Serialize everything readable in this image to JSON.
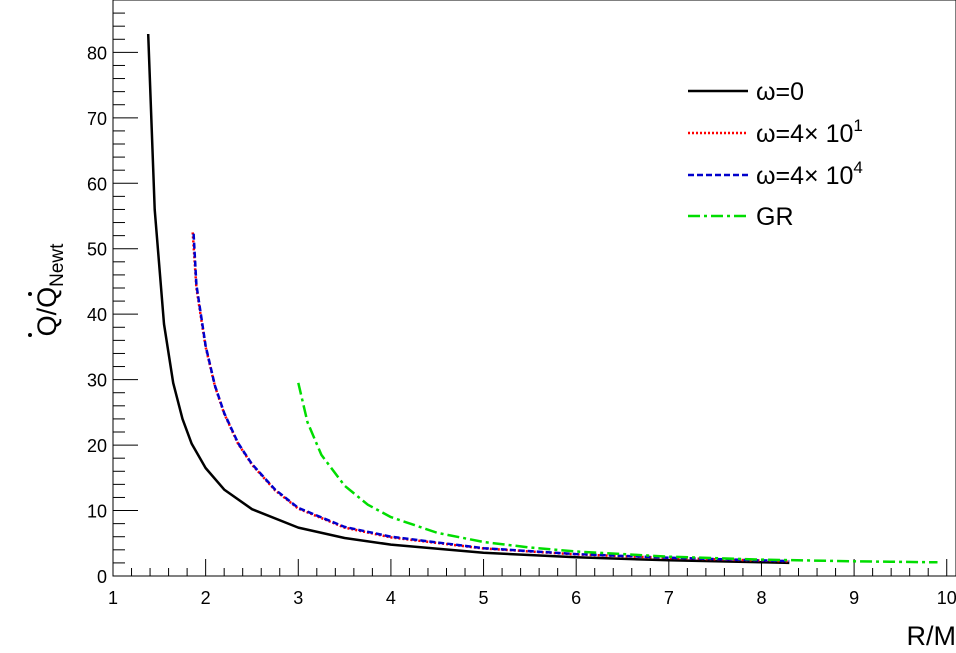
{
  "chart_data": {
    "type": "line",
    "xlabel": "R/M",
    "ylabel": {
      "main": "Q/Q",
      "subscript": "Newt"
    },
    "xlim": [
      1,
      10.1
    ],
    "ylim": [
      0,
      88
    ],
    "x_ticks": [
      "1",
      "2",
      "3",
      "4",
      "5",
      "6",
      "7",
      "8",
      "9",
      "10"
    ],
    "y_ticks": [
      "0",
      "10",
      "20",
      "30",
      "40",
      "50",
      "60",
      "70",
      "80"
    ],
    "grid": false,
    "legend_position": "top-right",
    "series": [
      {
        "name": "ω=0",
        "legend": {
          "main": "ω=0",
          "sup": ""
        },
        "color": "#000000",
        "dash": "solid",
        "x": [
          1.38,
          1.45,
          1.55,
          1.65,
          1.75,
          1.85,
          2.0,
          2.2,
          2.5,
          3.0,
          3.5,
          4.0,
          5.0,
          6.0,
          7.0,
          8.0,
          8.3
        ],
        "y": [
          82.8,
          56,
          38.5,
          29.5,
          24,
          20.2,
          16.5,
          13.2,
          10.2,
          7.4,
          5.8,
          4.8,
          3.55,
          2.85,
          2.4,
          2.1,
          2.0
        ]
      },
      {
        "name": "ω=4× 10",
        "legend": {
          "main": "ω=4× 10",
          "sup": "1"
        },
        "color": "#ff0000",
        "dash": "dotted",
        "x": [
          1.86,
          1.9,
          2.0,
          2.1,
          2.2,
          2.35,
          2.5,
          2.75,
          3.0,
          3.5,
          4.0,
          5.0,
          6.0,
          7.0,
          8.0,
          8.3
        ],
        "y": [
          52.5,
          44,
          35,
          29,
          24.8,
          20.2,
          17,
          13.1,
          10.3,
          7.4,
          5.9,
          4.2,
          3.3,
          2.75,
          2.35,
          2.25
        ]
      },
      {
        "name": "ω=4× 10",
        "legend": {
          "main": "ω=4× 10",
          "sup": "4"
        },
        "color": "#0000cc",
        "dash": "dashed",
        "x": [
          1.87,
          1.9,
          2.0,
          2.1,
          2.2,
          2.35,
          2.5,
          2.75,
          3.0,
          3.5,
          4.0,
          5.0,
          6.0,
          7.0,
          8.0,
          8.3
        ],
        "y": [
          52.3,
          44.5,
          35.2,
          29.1,
          24.9,
          20.3,
          17.1,
          13.2,
          10.4,
          7.5,
          6.0,
          4.25,
          3.35,
          2.8,
          2.38,
          2.27
        ]
      },
      {
        "name": "GR",
        "legend": {
          "main": "GR",
          "sup": ""
        },
        "color": "#00dd00",
        "dash": "dashdot",
        "x": [
          3.0,
          3.1,
          3.25,
          3.5,
          3.75,
          4.0,
          4.5,
          5.0,
          5.5,
          6.0,
          7.0,
          8.0,
          9.0,
          9.9
        ],
        "y": [
          29.5,
          23.5,
          18.5,
          13.8,
          10.9,
          9.0,
          6.6,
          5.2,
          4.35,
          3.75,
          2.95,
          2.5,
          2.25,
          2.1
        ]
      }
    ]
  }
}
